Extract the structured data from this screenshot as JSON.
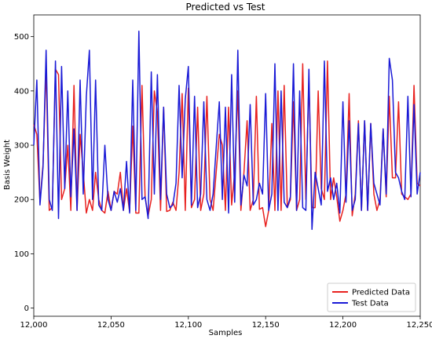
{
  "chart_data": {
    "type": "line",
    "title": "Predicted vs Test",
    "xlabel": "Samples",
    "ylabel": "Basis Weight",
    "xlim": [
      12000,
      12250
    ],
    "ylim": [
      -15,
      540
    ],
    "xticks": [
      12000,
      12050,
      12100,
      12150,
      12200,
      12250
    ],
    "xtick_labels": [
      "12,000",
      "12,050",
      "12,100",
      "12,150",
      "12,200",
      "12,250"
    ],
    "yticks": [
      0,
      100,
      200,
      300,
      400,
      500
    ],
    "ytick_labels": [
      "0",
      "100",
      "200",
      "300",
      "400",
      "500"
    ],
    "grid": false,
    "legend_position": "bottom-right",
    "x": [
      12000,
      12002,
      12004,
      12006,
      12008,
      12010,
      12012,
      12014,
      12016,
      12018,
      12020,
      12022,
      12024,
      12026,
      12028,
      12030,
      12032,
      12034,
      12036,
      12038,
      12040,
      12042,
      12044,
      12046,
      12048,
      12050,
      12052,
      12054,
      12056,
      12058,
      12060,
      12062,
      12064,
      12066,
      12068,
      12070,
      12072,
      12074,
      12076,
      12078,
      12080,
      12082,
      12084,
      12086,
      12088,
      12090,
      12092,
      12094,
      12096,
      12098,
      12100,
      12102,
      12104,
      12106,
      12108,
      12110,
      12112,
      12114,
      12116,
      12118,
      12120,
      12122,
      12124,
      12126,
      12128,
      12130,
      12132,
      12134,
      12136,
      12138,
      12140,
      12142,
      12144,
      12146,
      12148,
      12150,
      12152,
      12154,
      12156,
      12158,
      12160,
      12162,
      12164,
      12166,
      12168,
      12170,
      12172,
      12174,
      12176,
      12178,
      12180,
      12182,
      12184,
      12186,
      12188,
      12190,
      12192,
      12194,
      12196,
      12198,
      12200,
      12202,
      12204,
      12206,
      12208,
      12210,
      12212,
      12214,
      12216,
      12218,
      12220,
      12222,
      12224,
      12226,
      12228,
      12230,
      12232,
      12234,
      12236,
      12238,
      12240,
      12242,
      12244,
      12246,
      12248,
      12250
    ],
    "series": [
      {
        "name": "Predicted Data",
        "color": "#e8211f",
        "values": [
          338,
          320,
          195,
          265,
          445,
          180,
          185,
          440,
          430,
          200,
          220,
          300,
          180,
          410,
          180,
          320,
          250,
          175,
          200,
          180,
          250,
          200,
          180,
          175,
          215,
          180,
          215,
          210,
          250,
          180,
          220,
          178,
          335,
          175,
          175,
          410,
          205,
          170,
          200,
          400,
          360,
          180,
          370,
          178,
          180,
          195,
          180,
          250,
          395,
          180,
          405,
          185,
          200,
          370,
          180,
          210,
          390,
          200,
          180,
          250,
          320,
          300,
          180,
          370,
          190,
          250,
          400,
          180,
          250,
          345,
          180,
          200,
          390,
          182,
          185,
          150,
          180,
          340,
          180,
          400,
          180,
          410,
          185,
          200,
          380,
          180,
          200,
          450,
          200,
          420,
          185,
          185,
          400,
          220,
          200,
          455,
          200,
          240,
          205,
          160,
          180,
          210,
          395,
          170,
          210,
          345,
          180,
          345,
          180,
          340,
          210,
          180,
          200,
          330,
          205,
          390,
          240,
          240,
          380,
          210,
          205,
          200,
          210,
          410,
          230,
          225
        ],
        "line_segments": "note"
      },
      {
        "name": "Test Data",
        "color": "#1a1ad6",
        "values": [
          300,
          420,
          190,
          260,
          475,
          200,
          180,
          455,
          165,
          445,
          220,
          400,
          205,
          330,
          180,
          420,
          210,
          390,
          475,
          200,
          420,
          190,
          180,
          300,
          200,
          180,
          215,
          195,
          220,
          180,
          270,
          175,
          420,
          180,
          510,
          200,
          205,
          165,
          435,
          210,
          430,
          200,
          370,
          210,
          185,
          190,
          230,
          410,
          240,
          385,
          445,
          190,
          390,
          185,
          210,
          380,
          200,
          180,
          210,
          295,
          380,
          200,
          370,
          175,
          430,
          195,
          475,
          190,
          245,
          225,
          375,
          190,
          200,
          230,
          210,
          395,
          180,
          210,
          450,
          180,
          400,
          195,
          185,
          205,
          450,
          180,
          400,
          185,
          180,
          440,
          145,
          250,
          220,
          190,
          455,
          215,
          240,
          200,
          230,
          175,
          380,
          195,
          345,
          180,
          200,
          340,
          180,
          345,
          180,
          340,
          230,
          210,
          190,
          330,
          210,
          460,
          420,
          250,
          240,
          215,
          200,
          390,
          205,
          375,
          210,
          250
        ],
        "line_segments": "note"
      }
    ]
  }
}
